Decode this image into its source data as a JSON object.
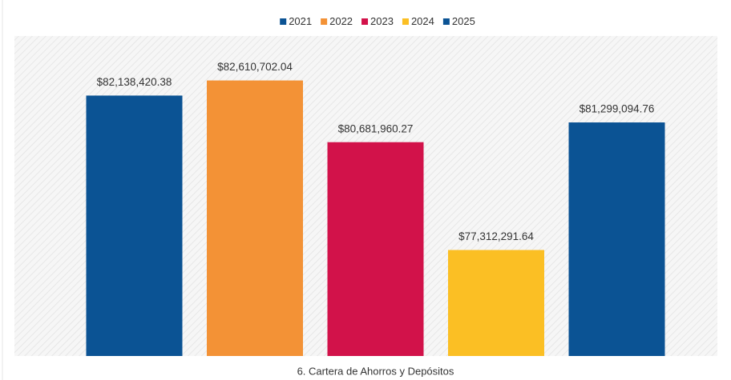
{
  "chart_data": {
    "type": "bar",
    "categories": [
      "6. Cartera de Ahorros y Depósitos"
    ],
    "series": [
      {
        "name": "2021",
        "color": "#0b5394",
        "values": [
          82138420.38
        ],
        "value_labels": [
          "$82,138,420.38"
        ]
      },
      {
        "name": "2022",
        "color": "#f39236",
        "values": [
          82610702.04
        ],
        "value_labels": [
          "$82,610,702.04"
        ]
      },
      {
        "name": "2023",
        "color": "#d2124a",
        "values": [
          80681960.27
        ],
        "value_labels": [
          "$80,681,960.27"
        ]
      },
      {
        "name": "2024",
        "color": "#fbbf24",
        "values": [
          77312291.64
        ],
        "value_labels": [
          "$77,312,291.64"
        ]
      },
      {
        "name": "2025",
        "color": "#0b5394",
        "values": [
          81299094.76
        ],
        "value_labels": [
          "$81,299,094.76"
        ]
      }
    ],
    "ylim": [
      74000000,
      84000000
    ],
    "legend": "top"
  }
}
